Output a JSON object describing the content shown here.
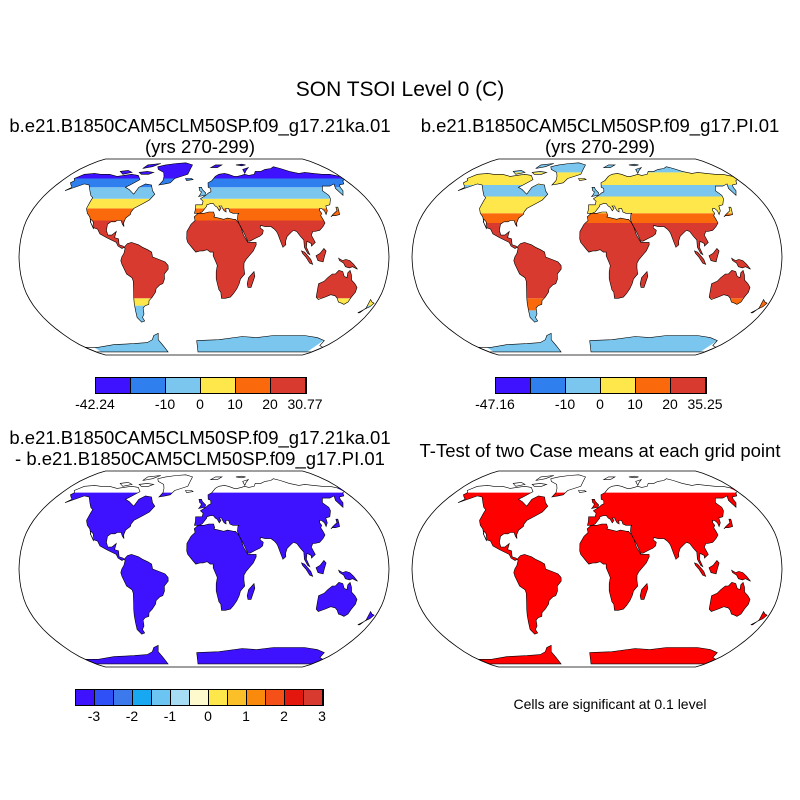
{
  "figure": {
    "title": "SON TSOI Level 0 (C)"
  },
  "panels": [
    {
      "id": "a",
      "title_line1": "b.e21.B1850CAM5CLM50SP.f09_g17.21ka.01",
      "title_line2": "(yrs 270-299)",
      "colorbar": {
        "colors": [
          "#3f12ff",
          "#2f80ee",
          "#7ac6ee",
          "#fde74a",
          "#fa6a0c",
          "#d83a2f"
        ],
        "labels": [
          "-42.24",
          "-10",
          "0",
          "10",
          "20",
          "30.77"
        ],
        "label_edges": [
          0,
          2,
          3,
          4,
          5,
          6
        ]
      }
    },
    {
      "id": "b",
      "title_line1": "b.e21.B1850CAM5CLM50SP.f09_g17.PI.01",
      "title_line2": "(yrs 270-299)",
      "colorbar": {
        "colors": [
          "#3f12ff",
          "#2f80ee",
          "#7ac6ee",
          "#fde74a",
          "#fa6a0c",
          "#d83a2f"
        ],
        "labels": [
          "-47.16",
          "-10",
          "0",
          "10",
          "20",
          "35.25"
        ],
        "label_edges": [
          0,
          2,
          3,
          4,
          5,
          6
        ]
      }
    },
    {
      "id": "c",
      "title_line1": "b.e21.B1850CAM5CLM50SP.f09_g17.21ka.01",
      "title_line2": "- b.e21.B1850CAM5CLM50SP.f09_g17.PI.01",
      "colorbar": {
        "colors": [
          "#3f12ff",
          "#2f4ff7",
          "#3b79ec",
          "#18a8f2",
          "#6cc4f2",
          "#a7dcf5",
          "#fffacd",
          "#fde74a",
          "#fbbf2a",
          "#fa8a0c",
          "#f45017",
          "#e3170d",
          "#d83a2f"
        ],
        "labels": [
          "-3",
          "-2",
          "-1",
          "0",
          "1",
          "2",
          "3"
        ],
        "label_edges": [
          1,
          3,
          5,
          7,
          9,
          11,
          13
        ]
      }
    },
    {
      "id": "d",
      "title_line1": "T-Test of two Case means at each grid point",
      "note": "Cells are significant at 0.1 level"
    }
  ],
  "colors": {
    "ocean": "#ffffff",
    "coast": "#000000",
    "ttest_land": "#ff0000",
    "diff_land": "#3f12ff"
  }
}
